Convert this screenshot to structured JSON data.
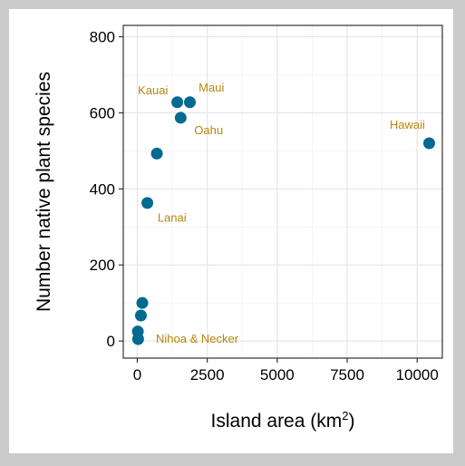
{
  "chart_data": {
    "type": "scatter",
    "title": "",
    "xlabel": "Island area (km",
    "xlabel_sup": "2",
    "xlabel_suffix": ")",
    "ylabel": "Number native plant species",
    "xlim": [
      -500,
      10900
    ],
    "ylim": [
      -45,
      830
    ],
    "x_ticks": [
      0,
      2500,
      5000,
      7500,
      10000
    ],
    "y_ticks": [
      0,
      200,
      400,
      600,
      800
    ],
    "grid": true,
    "point_color": "#006a91",
    "label_color": "#b8860b",
    "points": [
      {
        "x": 1430,
        "y": 628
      },
      {
        "x": 1880,
        "y": 628
      },
      {
        "x": 1550,
        "y": 587
      },
      {
        "x": 10430,
        "y": 520
      },
      {
        "x": 700,
        "y": 493
      },
      {
        "x": 360,
        "y": 363
      },
      {
        "x": 180,
        "y": 100
      },
      {
        "x": 130,
        "y": 67
      },
      {
        "x": 20,
        "y": 25
      },
      {
        "x": 30,
        "y": 5
      }
    ],
    "annotations": [
      {
        "text": "Kauai",
        "x": 560,
        "y": 658
      },
      {
        "text": "Maui",
        "x": 2650,
        "y": 665
      },
      {
        "text": "Oahu",
        "x": 2550,
        "y": 554
      },
      {
        "text": "Hawaii",
        "x": 9650,
        "y": 568
      },
      {
        "text": "Lanai",
        "x": 1240,
        "y": 323
      },
      {
        "text": "Nihoa & Necker",
        "x": 2140,
        "y": 5
      }
    ]
  }
}
